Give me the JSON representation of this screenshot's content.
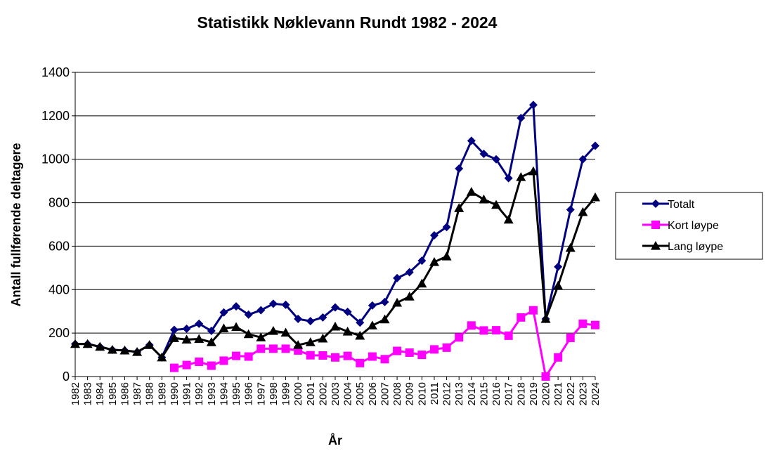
{
  "chart_data": {
    "type": "line",
    "title": "Statistikk Nøklevann Rundt 1982 - 2024",
    "xlabel": "År",
    "ylabel": "Antall fullførende deltagere",
    "ylim": [
      0,
      1400
    ],
    "yticks": [
      0,
      200,
      400,
      600,
      800,
      1000,
      1200,
      1400
    ],
    "grid": true,
    "legend_position": "right",
    "categories": [
      "1982",
      "1983",
      "1984",
      "1985",
      "1986",
      "1987",
      "1988",
      "1989",
      "1990",
      "1991",
      "1992",
      "1993",
      "1994",
      "1995",
      "1996",
      "1997",
      "1998",
      "1999",
      "2000",
      "2001",
      "2002",
      "2003",
      "2004",
      "2005",
      "2006",
      "2007",
      "2008",
      "2009",
      "2010",
      "2011",
      "2012",
      "2013",
      "2014",
      "2015",
      "2016",
      "2017",
      "2018",
      "2019",
      "2020",
      "2021",
      "2022",
      "2023",
      "2024"
    ],
    "series": [
      {
        "name": "Totalt",
        "color": "#000080",
        "marker": "diamond",
        "values": [
          150,
          150,
          137,
          123,
          120,
          113,
          145,
          88,
          215,
          220,
          243,
          210,
          295,
          323,
          285,
          305,
          335,
          330,
          265,
          255,
          272,
          318,
          298,
          248,
          327,
          343,
          453,
          480,
          533,
          650,
          688,
          957,
          1085,
          1025,
          1000,
          913,
          1190,
          1250,
          265,
          505,
          768,
          1000,
          1062
        ]
      },
      {
        "name": "Kort løype",
        "color": "#ff00ff",
        "marker": "square",
        "values": [
          null,
          null,
          null,
          null,
          null,
          null,
          null,
          null,
          40,
          53,
          68,
          50,
          73,
          95,
          92,
          128,
          128,
          128,
          120,
          98,
          97,
          88,
          95,
          62,
          92,
          80,
          118,
          110,
          100,
          125,
          133,
          180,
          235,
          212,
          213,
          188,
          272,
          305,
          0,
          88,
          178,
          243,
          237
        ]
      },
      {
        "name": "Lang løype",
        "color": "#000000",
        "marker": "triangle",
        "values": [
          150,
          150,
          137,
          123,
          120,
          113,
          145,
          88,
          177,
          170,
          173,
          158,
          222,
          228,
          195,
          180,
          210,
          202,
          145,
          158,
          175,
          230,
          207,
          188,
          235,
          263,
          340,
          368,
          428,
          527,
          553,
          775,
          850,
          815,
          790,
          722,
          918,
          945,
          265,
          418,
          592,
          757,
          825
        ]
      }
    ]
  }
}
